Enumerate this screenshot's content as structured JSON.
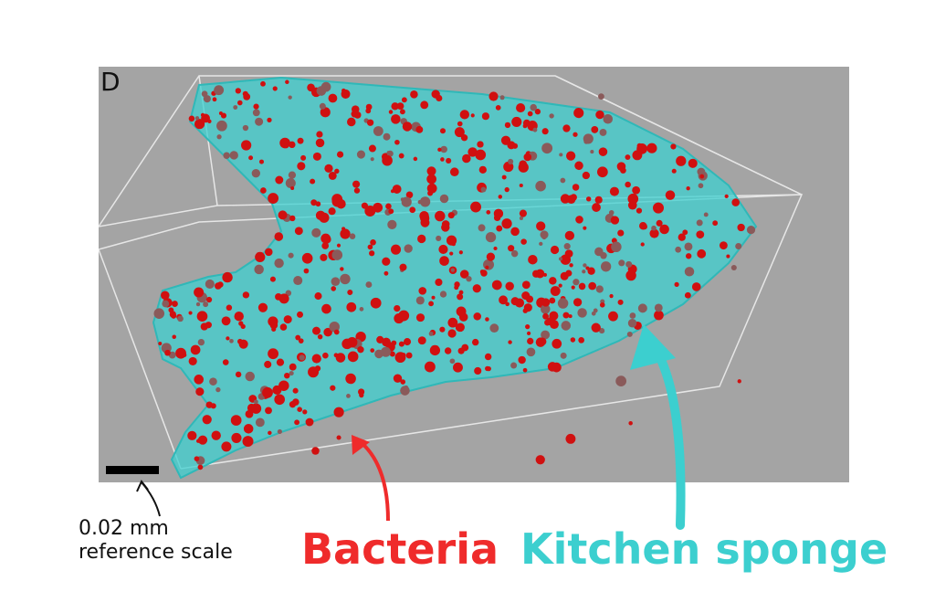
{
  "panel": {
    "letter": "D"
  },
  "scale_bar": {
    "line1": "0.02 mm",
    "line2": "reference scale"
  },
  "labels": {
    "bacteria": "Bacteria",
    "sponge": "Kitchen sponge"
  },
  "colors": {
    "background": "#a4a4a4",
    "sponge": "#3fd0d0",
    "bacteria": "#d01010",
    "bacteria_label": "#ef2b2b",
    "sponge_label": "#3ccfcf"
  }
}
